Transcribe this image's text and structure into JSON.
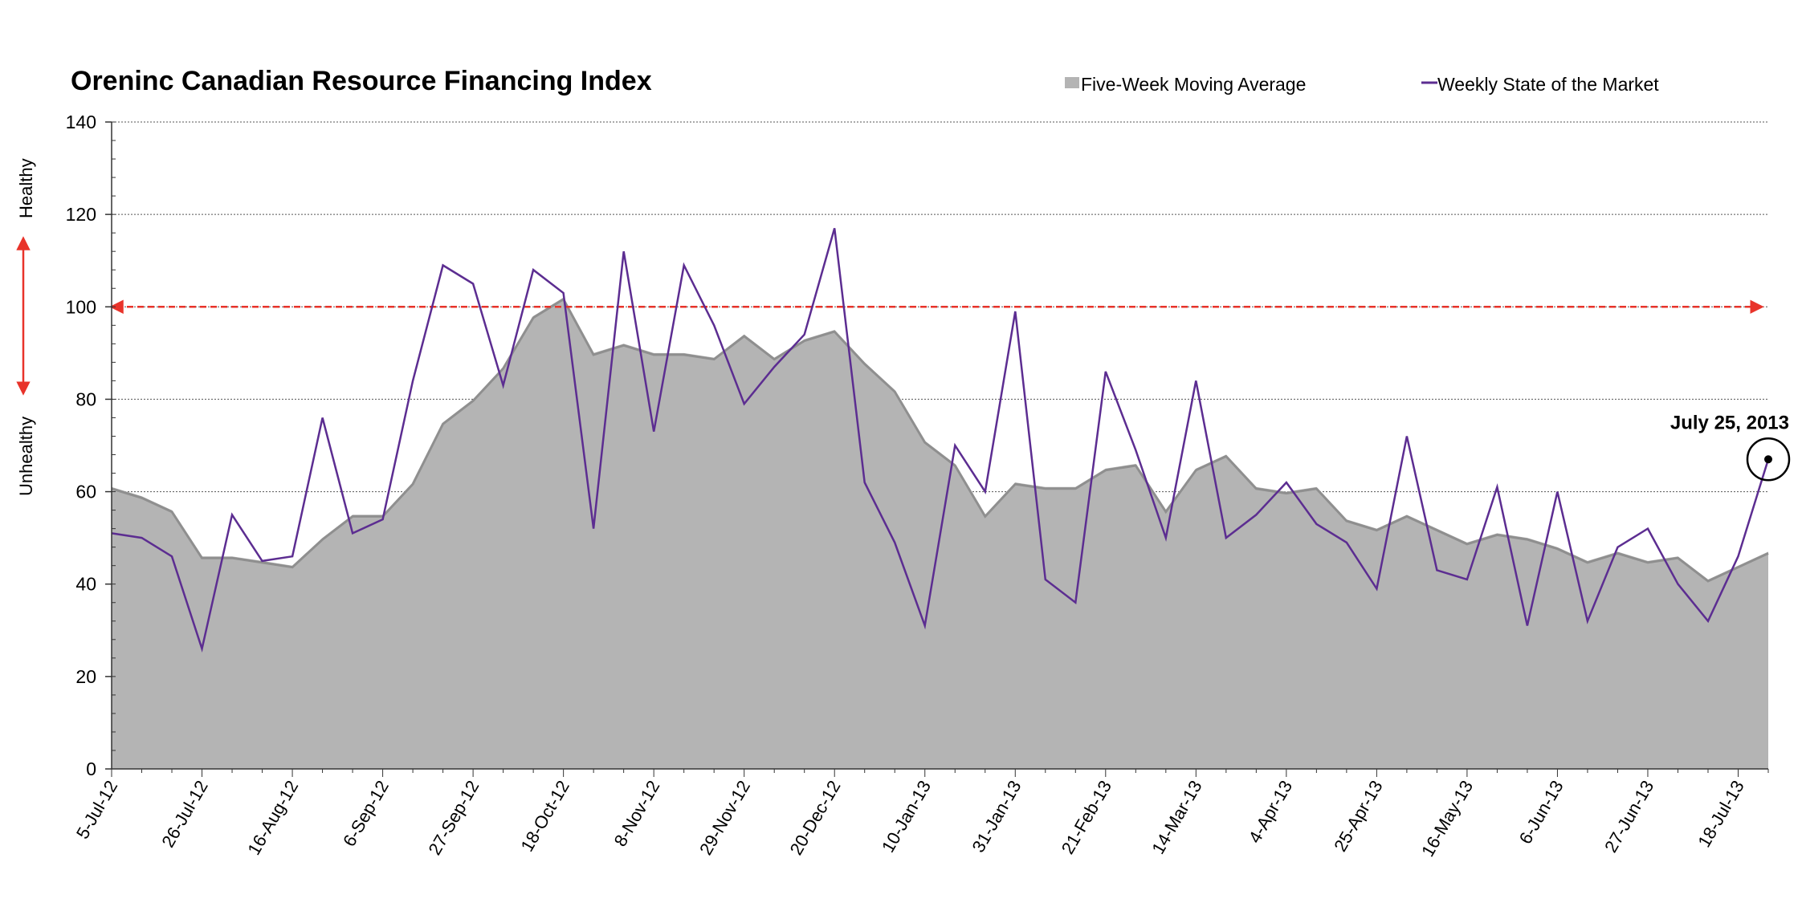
{
  "chart_data": {
    "type": "area",
    "title": "Oreninc Canadian Resource Financing Index",
    "ylim": [
      0,
      140
    ],
    "yticks": [
      0,
      20,
      40,
      60,
      80,
      100,
      120,
      140
    ],
    "grid": true,
    "legend_position": "top-right",
    "y_side_labels": {
      "top": "Healthy",
      "bottom": "Unhealthy"
    },
    "threshold": {
      "value": 100,
      "color": "#e8332a"
    },
    "x_tick_labels": [
      "5-Jul-12",
      "26-Jul-12",
      "16-Aug-12",
      "6-Sep-12",
      "27-Sep-12",
      "18-Oct-12",
      "8-Nov-12",
      "29-Nov-12",
      "20-Dec-12",
      "10-Jan-13",
      "31-Jan-13",
      "21-Feb-13",
      "14-Mar-13",
      "4-Apr-13",
      "25-Apr-13",
      "16-May-13",
      "6-Jun-13",
      "27-Jun-13",
      "18-Jul-13"
    ],
    "x_tick_every_weeks": 3,
    "annotation": {
      "label": "July 25, 2013",
      "week_index": 55
    },
    "series": [
      {
        "name": "Five-Week Moving Average",
        "kind": "area",
        "color": "#b4b4b4",
        "values": [
          61,
          59,
          56,
          46,
          46,
          45,
          44,
          50,
          55,
          55,
          62,
          75,
          80,
          87,
          98,
          102,
          90,
          92,
          90,
          90,
          89,
          94,
          89,
          93,
          95,
          88,
          82,
          71,
          66,
          55,
          62,
          61,
          61,
          65,
          66,
          56,
          65,
          68,
          61,
          60,
          61,
          54,
          52,
          55,
          52,
          49,
          51,
          50,
          48,
          45,
          47,
          45,
          46,
          41,
          44,
          47
        ]
      },
      {
        "name": "Weekly State of the Market",
        "kind": "line",
        "color": "#5c2d91",
        "values": [
          51,
          50,
          46,
          26,
          55,
          45,
          46,
          76,
          51,
          54,
          84,
          109,
          105,
          83,
          108,
          103,
          52,
          112,
          73,
          109,
          96,
          79,
          87,
          94,
          117,
          62,
          49,
          31,
          70,
          60,
          99,
          41,
          36,
          86,
          69,
          50,
          84,
          50,
          55,
          62,
          53,
          49,
          39,
          72,
          43,
          41,
          61,
          31,
          60,
          32,
          48,
          52,
          40,
          32,
          46,
          67
        ]
      }
    ]
  }
}
